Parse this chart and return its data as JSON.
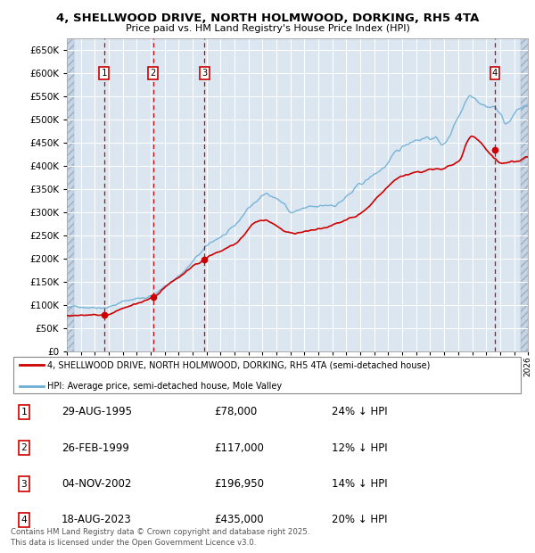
{
  "title_line1": "4, SHELLWOOD DRIVE, NORTH HOLMWOOD, DORKING, RH5 4TA",
  "title_line2": "Price paid vs. HM Land Registry's House Price Index (HPI)",
  "background_color": "#ffffff",
  "plot_bg_color": "#dce6f1",
  "grid_color": "#ffffff",
  "hatch_color": "#c8d4e3",
  "transactions": [
    {
      "num": 1,
      "x": 1995.66,
      "price": 78000
    },
    {
      "num": 2,
      "x": 1999.16,
      "price": 117000
    },
    {
      "num": 3,
      "x": 2002.84,
      "price": 196950
    },
    {
      "num": 4,
      "x": 2023.63,
      "price": 435000
    }
  ],
  "hpi_line_color": "#6baed6",
  "price_line_color": "#cc0000",
  "vline_color": "#cc0000",
  "xlim": [
    1993,
    2026
  ],
  "ylim": [
    0,
    675000
  ],
  "yticks": [
    0,
    50000,
    100000,
    150000,
    200000,
    250000,
    300000,
    350000,
    400000,
    450000,
    500000,
    550000,
    600000,
    650000
  ],
  "legend_label1": "4, SHELLWOOD DRIVE, NORTH HOLMWOOD, DORKING, RH5 4TA (semi-detached house)",
  "legend_label2": "HPI: Average price, semi-detached house, Mole Valley",
  "footer": "Contains HM Land Registry data © Crown copyright and database right 2025.\nThis data is licensed under the Open Government Licence v3.0.",
  "table_rows": [
    {
      "num": 1,
      "date": "29-AUG-1995",
      "price": "£78,000",
      "pct": "24% ↓ HPI"
    },
    {
      "num": 2,
      "date": "26-FEB-1999",
      "price": "£117,000",
      "pct": "12% ↓ HPI"
    },
    {
      "num": 3,
      "date": "04-NOV-2002",
      "price": "£196,950",
      "pct": "14% ↓ HPI"
    },
    {
      "num": 4,
      "date": "18-AUG-2023",
      "price": "£435,000",
      "pct": "20% ↓ HPI"
    }
  ],
  "hpi_anchors_x": [
    1993,
    1994,
    1995.66,
    1997,
    1999.16,
    2001,
    2002.84,
    2004,
    2005,
    2006,
    2007.5,
    2008.5,
    2009,
    2010,
    2011,
    2012,
    2013,
    2014,
    2015,
    2016,
    2017,
    2018,
    2019,
    2020,
    2021,
    2022,
    2023,
    2023.63,
    2024,
    2024.5,
    2025,
    2026
  ],
  "hpi_anchors_y": [
    93000,
    96000,
    102600,
    115000,
    132950,
    175000,
    229000,
    255000,
    270000,
    310000,
    340000,
    325000,
    305000,
    310000,
    305000,
    310000,
    330000,
    350000,
    370000,
    395000,
    420000,
    445000,
    455000,
    440000,
    500000,
    555000,
    545000,
    543750,
    525000,
    510000,
    530000,
    545000
  ],
  "price_anchors_x": [
    1993,
    1995.66,
    1997,
    1999.16,
    2001,
    2002.84,
    2005,
    2007,
    2009,
    2011,
    2013,
    2015,
    2017,
    2019,
    2021,
    2022,
    2023.63,
    2024,
    2025,
    2026
  ],
  "price_anchors_y": [
    78000,
    78000,
    90000,
    117000,
    155000,
    196950,
    230000,
    285000,
    260000,
    270000,
    295000,
    330000,
    385000,
    395000,
    420000,
    475000,
    435000,
    425000,
    430000,
    440000
  ]
}
